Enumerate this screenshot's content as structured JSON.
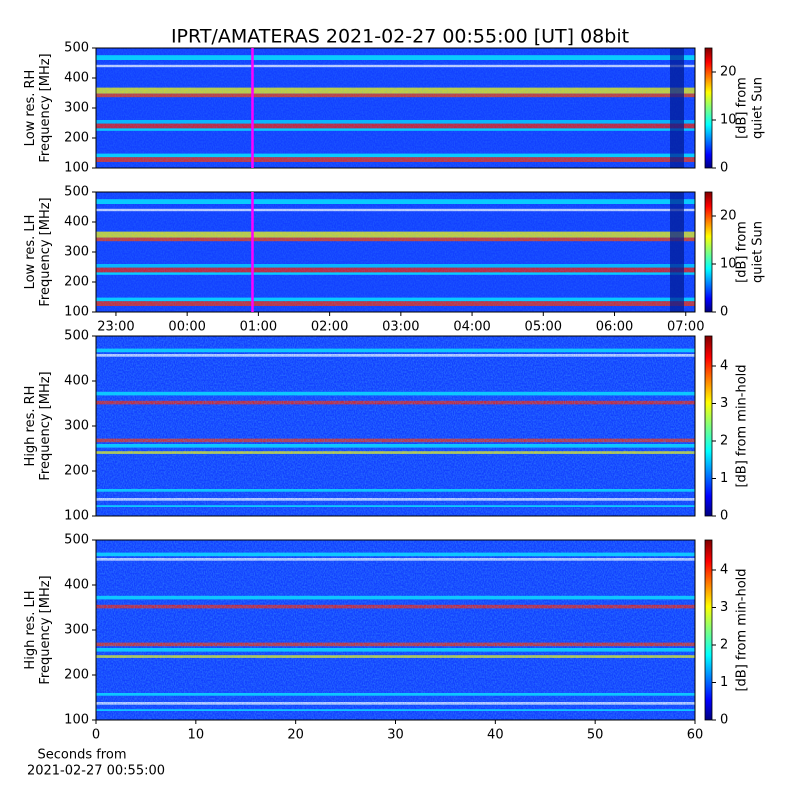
{
  "figure": {
    "title": "IPRT/AMATERAS 2021-02-27 00:55:00 [UT]   08bit"
  },
  "chart_data": [
    {
      "type": "heatmap",
      "ylabel": [
        "Low res. RH",
        "Frequency [MHz]"
      ],
      "ylim": [
        100,
        500
      ],
      "yticks": [
        100,
        200,
        300,
        400,
        500
      ],
      "xlim": [
        -1.28,
        7.13
      ],
      "marker_x": 0.917,
      "marker_color": "#ff00ff",
      "colorbar": {
        "label": [
          "[dB] from",
          "quiet Sun"
        ],
        "lim": [
          0,
          25
        ],
        "ticks": [
          0,
          10,
          20
        ]
      }
    },
    {
      "type": "heatmap",
      "ylabel": [
        "Low res. LH",
        "Frequency [MHz]"
      ],
      "ylim": [
        100,
        500
      ],
      "yticks": [
        100,
        200,
        300,
        400,
        500
      ],
      "xlim": [
        -1.28,
        7.13
      ],
      "xticks": [
        {
          "value": -1,
          "label": "23:00"
        },
        {
          "value": 0,
          "label": "00:00"
        },
        {
          "value": 1,
          "label": "01:00"
        },
        {
          "value": 2,
          "label": "02:00"
        },
        {
          "value": 3,
          "label": "03:00"
        },
        {
          "value": 4,
          "label": "04:00"
        },
        {
          "value": 5,
          "label": "05:00"
        },
        {
          "value": 6,
          "label": "06:00"
        },
        {
          "value": 7,
          "label": "07:00"
        }
      ],
      "marker_x": 0.917,
      "marker_color": "#ff00ff",
      "colorbar": {
        "label": [
          "[dB] from",
          "quiet Sun"
        ],
        "lim": [
          0,
          25
        ],
        "ticks": [
          0,
          10,
          20
        ]
      }
    },
    {
      "type": "heatmap",
      "ylabel": [
        "High res. RH",
        "Frequency [MHz]"
      ],
      "ylim": [
        100,
        500
      ],
      "yticks": [
        100,
        200,
        300,
        400,
        500
      ],
      "xlim": [
        0,
        60
      ],
      "colorbar": {
        "label": [
          "[dB] from min-hold"
        ],
        "lim": [
          0,
          4.8
        ],
        "ticks": [
          0,
          1,
          2,
          3,
          4
        ]
      }
    },
    {
      "type": "heatmap",
      "ylabel": [
        "High res. LH",
        "Frequency [MHz]"
      ],
      "ylim": [
        100,
        500
      ],
      "yticks": [
        100,
        200,
        300,
        400,
        500
      ],
      "xlim": [
        0,
        60
      ],
      "xticks": [
        0,
        10,
        20,
        30,
        40,
        50,
        60
      ],
      "xlabel": [
        "Seconds from",
        "2021-02-27 00:55:00"
      ],
      "colorbar": {
        "label": [
          "[dB] from min-hold"
        ],
        "lim": [
          0,
          4.8
        ],
        "ticks": [
          0,
          1,
          2,
          3,
          4
        ]
      }
    }
  ]
}
